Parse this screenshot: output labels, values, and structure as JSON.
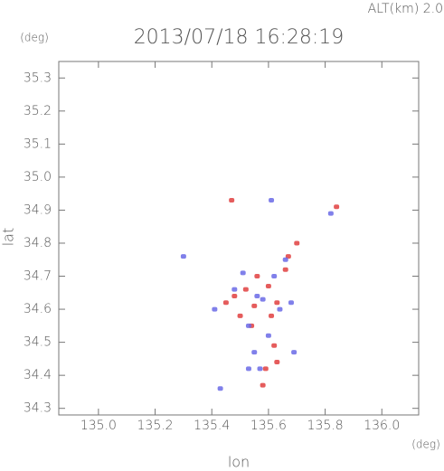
{
  "chart_data": {
    "type": "scatter",
    "title": "2013/07/18 16:28:19",
    "subtitle": "ALT(km) 2.0",
    "y_unit": "(deg)",
    "x_unit": "(deg)",
    "x_label": "lon",
    "y_label": "lat",
    "xlim": [
      134.86,
      136.13
    ],
    "ylim": [
      34.28,
      35.35
    ],
    "xticks": [
      {
        "value": 135,
        "label": "135.0"
      },
      135.2,
      135.4,
      135.6,
      135.8,
      {
        "value": 136,
        "label": "136.0"
      }
    ],
    "yticks": [
      34.3,
      34.4,
      34.5,
      34.6,
      34.7,
      34.8,
      34.9,
      {
        "value": 35,
        "label": "35.0"
      },
      35.1,
      35.2,
      35.3
    ],
    "grid": false,
    "series": [
      {
        "color": "#e04040",
        "x": [
          135.47,
          135.84,
          135.48,
          135.52,
          135.55,
          135.61,
          135.63,
          135.59,
          135.54,
          135.63,
          135.7,
          135.67,
          135.56,
          135.6,
          135.58,
          135.45,
          135.66,
          135.62,
          135.5
        ],
        "values": [
          34.93,
          34.91,
          34.64,
          34.66,
          34.61,
          34.58,
          34.44,
          34.42,
          34.55,
          34.62,
          34.8,
          34.76,
          34.7,
          34.67,
          34.37,
          34.62,
          34.72,
          34.49,
          34.58
        ]
      },
      {
        "color": "#6a6ae6",
        "x": [
          135.41,
          135.57,
          135.53,
          135.69,
          135.82,
          135.3,
          135.51,
          135.58,
          135.53,
          135.6,
          135.48,
          135.64,
          135.55,
          135.66,
          135.43,
          135.56,
          135.62,
          135.61,
          135.68
        ],
        "values": [
          34.6,
          34.42,
          34.42,
          34.47,
          34.89,
          34.76,
          34.71,
          34.63,
          34.55,
          34.52,
          34.66,
          34.6,
          34.47,
          34.75,
          34.36,
          34.64,
          34.7,
          34.93,
          34.62
        ]
      }
    ]
  }
}
